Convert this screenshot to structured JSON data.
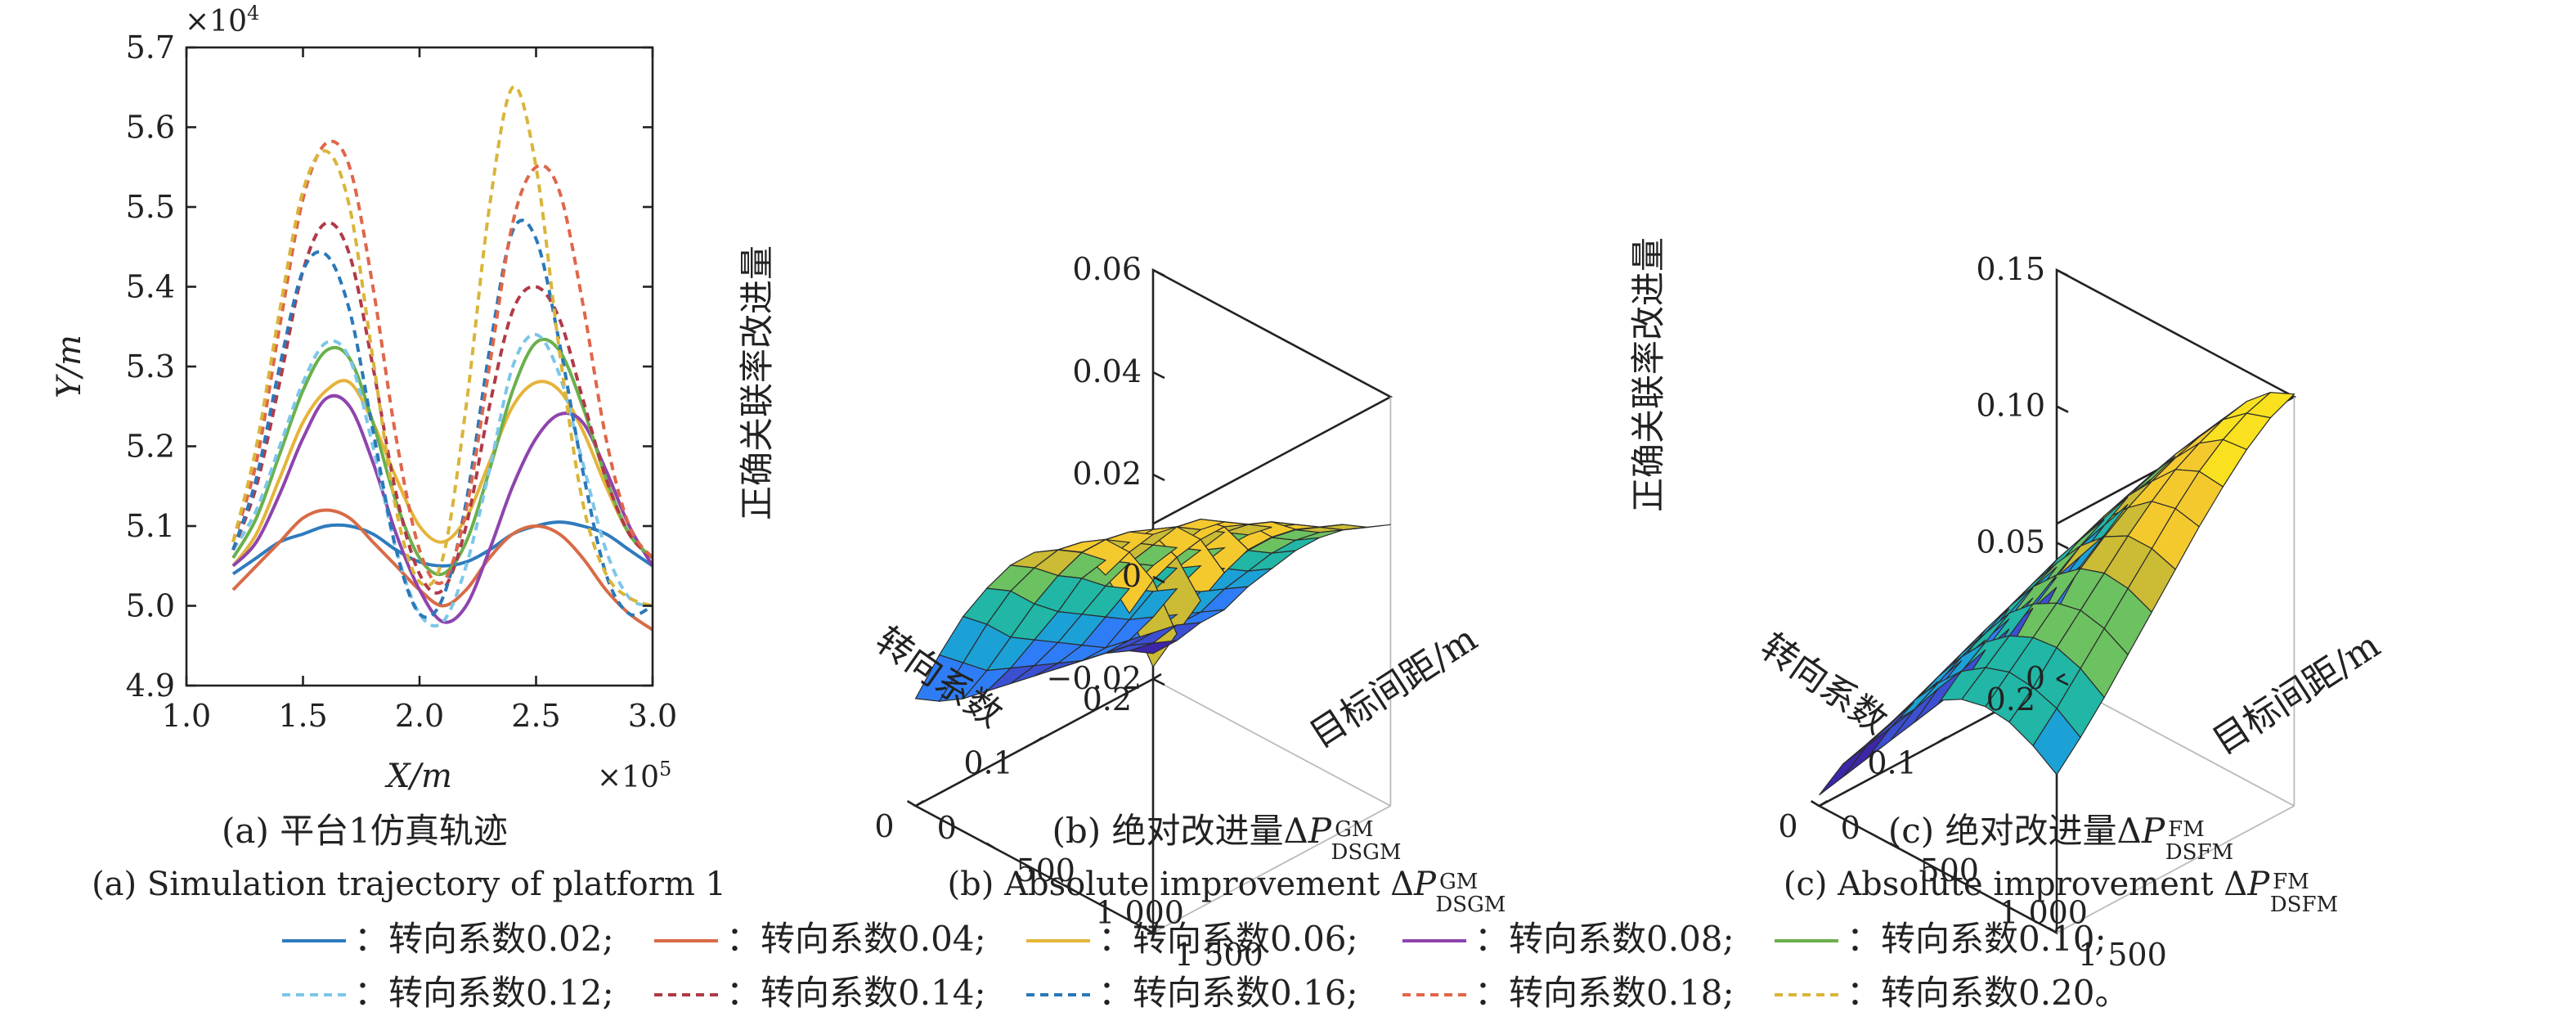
{
  "chart_data": [
    {
      "type": "line",
      "panel_label_zh": "(a) 平台1仿真轨迹",
      "panel_label_en": "(a) Simulation trajectory of platform 1",
      "xlabel": "X/m",
      "ylabel": "Y/m",
      "x_multiplier": "×10",
      "x_multiplier_exp": "5",
      "y_multiplier": "×10",
      "y_multiplier_exp": "4",
      "xlim": [
        1.0,
        3.0
      ],
      "ylim": [
        4.9,
        5.7
      ],
      "xticks": [
        "1.0",
        "1.5",
        "2.0",
        "2.5",
        "3.0"
      ],
      "yticks": [
        "4.9",
        "5.0",
        "5.1",
        "5.2",
        "5.3",
        "5.4",
        "5.5",
        "5.6",
        "5.7"
      ],
      "x": [
        1.2,
        1.3,
        1.4,
        1.5,
        1.6,
        1.7,
        1.8,
        1.9,
        2.0,
        2.1,
        2.2,
        2.3,
        2.4,
        2.5,
        2.6,
        2.7,
        2.8,
        2.9,
        3.0
      ],
      "series": [
        {
          "name": "转向系数0.02",
          "color": "#2f7bbd",
          "dash": false,
          "values": [
            5.04,
            5.06,
            5.08,
            5.09,
            5.1,
            5.1,
            5.09,
            5.07,
            5.055,
            5.05,
            5.055,
            5.07,
            5.09,
            5.1,
            5.105,
            5.1,
            5.09,
            5.07,
            5.05
          ]
        },
        {
          "name": "转向系数0.04",
          "color": "#d86b47",
          "dash": false,
          "values": [
            5.02,
            5.05,
            5.08,
            5.11,
            5.12,
            5.11,
            5.08,
            5.05,
            5.02,
            5.0,
            5.02,
            5.06,
            5.09,
            5.1,
            5.09,
            5.06,
            5.02,
            4.99,
            4.97
          ]
        },
        {
          "name": "转向系数0.06",
          "color": "#e5b43a",
          "dash": false,
          "values": [
            5.05,
            5.09,
            5.16,
            5.23,
            5.27,
            5.28,
            5.23,
            5.16,
            5.1,
            5.08,
            5.11,
            5.18,
            5.25,
            5.28,
            5.27,
            5.22,
            5.15,
            5.09,
            5.06
          ]
        },
        {
          "name": "转向系数0.08",
          "color": "#8e44ad",
          "dash": false,
          "values": [
            5.05,
            5.08,
            5.14,
            5.21,
            5.26,
            5.25,
            5.18,
            5.09,
            5.02,
            4.98,
            5.0,
            5.07,
            5.15,
            5.21,
            5.24,
            5.23,
            5.17,
            5.1,
            5.05
          ]
        },
        {
          "name": "转向系数0.10",
          "color": "#6ab04c",
          "dash": false,
          "values": [
            5.06,
            5.11,
            5.19,
            5.27,
            5.32,
            5.31,
            5.23,
            5.13,
            5.06,
            5.04,
            5.08,
            5.17,
            5.27,
            5.33,
            5.32,
            5.25,
            5.16,
            5.09,
            5.06
          ]
        },
        {
          "name": "转向系数0.12",
          "color": "#7cc6e8",
          "dash": true,
          "values": [
            5.07,
            5.12,
            5.2,
            5.28,
            5.33,
            5.31,
            5.2,
            5.07,
            4.99,
            4.98,
            5.05,
            5.17,
            5.3,
            5.34,
            5.29,
            5.18,
            5.07,
            5.01,
            5.0
          ]
        },
        {
          "name": "转向系数0.14",
          "color": "#b03a48",
          "dash": true,
          "values": [
            5.07,
            5.15,
            5.28,
            5.42,
            5.48,
            5.44,
            5.3,
            5.14,
            5.04,
            5.02,
            5.1,
            5.25,
            5.37,
            5.4,
            5.36,
            5.26,
            5.16,
            5.09,
            5.06
          ]
        },
        {
          "name": "转向系数0.16",
          "color": "#2a78b9",
          "dash": true,
          "values": [
            5.07,
            5.16,
            5.3,
            5.42,
            5.44,
            5.37,
            5.22,
            5.07,
            4.99,
            5.01,
            5.13,
            5.32,
            5.47,
            5.46,
            5.33,
            5.17,
            5.04,
            4.99,
            5.0
          ]
        },
        {
          "name": "转向系数0.18",
          "color": "#e0664a",
          "dash": true,
          "values": [
            5.08,
            5.18,
            5.35,
            5.51,
            5.58,
            5.55,
            5.4,
            5.21,
            5.07,
            5.03,
            5.12,
            5.3,
            5.48,
            5.55,
            5.52,
            5.38,
            5.21,
            5.1,
            5.06
          ]
        },
        {
          "name": "转向系数0.20",
          "color": "#d9b53a",
          "dash": true,
          "values": [
            5.08,
            5.2,
            5.37,
            5.52,
            5.57,
            5.5,
            5.31,
            5.12,
            5.03,
            5.06,
            5.25,
            5.5,
            5.65,
            5.55,
            5.32,
            5.13,
            5.04,
            5.01,
            5.0
          ]
        }
      ],
      "legend_placement": "bottom",
      "legend_prefix": "：",
      "legend_separator": ";",
      "legend_end": "。"
    },
    {
      "type": "surface",
      "panel_label_zh_pre": "(b) 绝对改进量Δ",
      "panel_label_en_pre": "(b) Absolute improvement Δ",
      "symbol": "P",
      "superscript": "GM",
      "subscript": "DSGM",
      "zlabel": "正确关联率改进量",
      "xlabel": "转向系数",
      "ylabel": "目标间距/m",
      "xlim": [
        0,
        0.2
      ],
      "ylim": [
        0,
        1500
      ],
      "zlim": [
        -0.02,
        0.06
      ],
      "zticks": [
        "−0.02",
        "0",
        "0.02",
        "0.04",
        "0.06"
      ],
      "xticks": [
        "0",
        "0.1",
        "0.2"
      ],
      "yticks": [
        "0",
        "500",
        "1 000",
        "1 500"
      ],
      "x": [
        0,
        0.02,
        0.04,
        0.06,
        0.08,
        0.1,
        0.12,
        0.14,
        0.16,
        0.18,
        0.2
      ],
      "y": [
        0,
        150,
        300,
        450,
        600,
        750,
        900,
        1050,
        1200,
        1350,
        1500
      ],
      "z": [
        [
          0.001,
          -0.002,
          -0.004,
          -0.005,
          -0.006,
          -0.007,
          -0.008,
          -0.009,
          -0.01,
          -0.012,
          -0.015
        ],
        [
          0.012,
          0.008,
          0.004,
          0.002,
          0.0,
          -0.002,
          -0.004,
          -0.005,
          -0.006,
          -0.008,
          -0.01
        ],
        [
          0.022,
          0.018,
          0.013,
          0.01,
          0.007,
          0.004,
          0.001,
          0.0,
          -0.001,
          -0.002,
          -0.004
        ],
        [
          0.03,
          0.027,
          0.022,
          0.018,
          0.015,
          0.012,
          0.009,
          0.007,
          0.005,
          0.003,
          0.001
        ],
        [
          0.037,
          0.034,
          0.03,
          0.027,
          0.023,
          0.02,
          0.017,
          0.015,
          0.012,
          0.01,
          0.008
        ],
        [
          0.042,
          0.04,
          0.037,
          0.033,
          0.03,
          0.027,
          0.024,
          0.022,
          0.019,
          0.016,
          0.014
        ],
        [
          0.045,
          0.044,
          0.042,
          0.039,
          0.036,
          0.033,
          0.03,
          0.028,
          0.025,
          0.022,
          0.02
        ],
        [
          0.047,
          0.047,
          0.046,
          0.044,
          0.042,
          0.039,
          0.036,
          0.033,
          0.03,
          0.027,
          0.025
        ],
        [
          0.045,
          0.047,
          0.048,
          0.047,
          0.046,
          0.043,
          0.04,
          0.037,
          0.034,
          0.031,
          0.029
        ],
        [
          0.04,
          0.044,
          0.046,
          0.047,
          0.047,
          0.045,
          0.043,
          0.04,
          0.037,
          0.034,
          0.032
        ],
        [
          0.032,
          0.036,
          0.04,
          0.043,
          0.045,
          0.045,
          0.044,
          0.042,
          0.04,
          0.037,
          0.035
        ]
      ]
    },
    {
      "type": "surface",
      "panel_label_zh_pre": "(c) 绝对改进量Δ",
      "panel_label_en_pre": "(c) Absolute improvement Δ",
      "symbol": "P",
      "superscript": "FM",
      "subscript": "DSFM",
      "zlabel": "正确关联率改进量",
      "xlabel": "转向系数",
      "ylabel": "目标间距/m",
      "xlim": [
        0,
        0.2
      ],
      "ylim": [
        0,
        1500
      ],
      "zlim": [
        0,
        0.15
      ],
      "zticks": [
        "0",
        "0.05",
        "0.10",
        "0.15"
      ],
      "xticks": [
        "0",
        "0.1",
        "0.2"
      ],
      "yticks": [
        "0",
        "500",
        "1 000",
        "1 500"
      ],
      "x": [
        0,
        0.02,
        0.04,
        0.06,
        0.08,
        0.1,
        0.12,
        0.14,
        0.16,
        0.18,
        0.2
      ],
      "y": [
        0,
        150,
        300,
        450,
        600,
        750,
        900,
        1050,
        1200,
        1350,
        1500
      ],
      "z": [
        [
          0.004,
          0.006,
          0.008,
          0.01,
          0.012,
          0.014,
          0.016,
          0.018,
          0.02,
          0.022,
          0.025
        ],
        [
          0.02,
          0.022,
          0.024,
          0.026,
          0.029,
          0.031,
          0.034,
          0.037,
          0.04,
          0.043,
          0.046
        ],
        [
          0.032,
          0.035,
          0.038,
          0.041,
          0.044,
          0.047,
          0.05,
          0.053,
          0.056,
          0.059,
          0.062
        ],
        [
          0.044,
          0.048,
          0.052,
          0.056,
          0.06,
          0.063,
          0.066,
          0.069,
          0.072,
          0.075,
          0.078
        ],
        [
          0.054,
          0.059,
          0.064,
          0.068,
          0.073,
          0.077,
          0.081,
          0.084,
          0.087,
          0.09,
          0.092
        ],
        [
          0.062,
          0.068,
          0.074,
          0.08,
          0.085,
          0.089,
          0.093,
          0.097,
          0.1,
          0.103,
          0.105
        ],
        [
          0.067,
          0.074,
          0.081,
          0.088,
          0.094,
          0.1,
          0.105,
          0.109,
          0.112,
          0.115,
          0.117
        ],
        [
          0.069,
          0.077,
          0.085,
          0.093,
          0.101,
          0.108,
          0.114,
          0.119,
          0.123,
          0.126,
          0.128
        ],
        [
          0.068,
          0.076,
          0.086,
          0.095,
          0.104,
          0.113,
          0.121,
          0.128,
          0.133,
          0.137,
          0.139
        ],
        [
          0.064,
          0.073,
          0.083,
          0.093,
          0.103,
          0.113,
          0.123,
          0.132,
          0.139,
          0.144,
          0.147
        ],
        [
          0.058,
          0.067,
          0.077,
          0.088,
          0.099,
          0.11,
          0.121,
          0.131,
          0.14,
          0.147,
          0.151
        ]
      ]
    }
  ]
}
